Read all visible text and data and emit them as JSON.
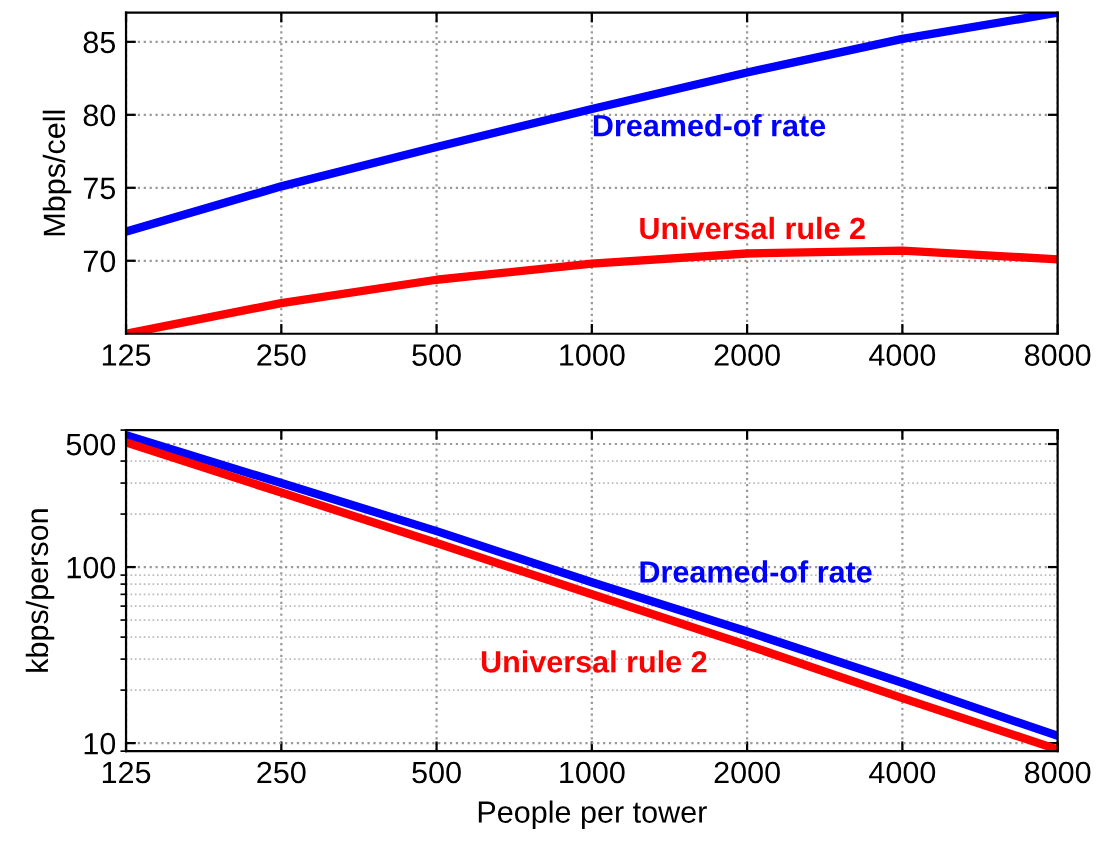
{
  "chart_data": [
    {
      "type": "line",
      "ylabel": "Mbps/cell",
      "x": [
        125,
        250,
        500,
        1000,
        2000,
        4000,
        8000
      ],
      "log": "x",
      "xlim": [
        125,
        8000
      ],
      "xticks": [
        125,
        250,
        500,
        1000,
        2000,
        4000,
        8000
      ],
      "ylim": [
        65,
        87
      ],
      "yticks": [
        70,
        75,
        80,
        85
      ],
      "grid": true,
      "legend": false,
      "marker": "none",
      "line_style": "solid",
      "series": [
        {
          "name": "Dreamed-of rate",
          "color": "#0000ff",
          "values": [
            72,
            75.1,
            77.8,
            80.4,
            82.9,
            85.2,
            87
          ]
        },
        {
          "name": "Universal rule 2",
          "color": "#ff0000",
          "values": [
            65,
            67.1,
            68.7,
            69.8,
            70.5,
            70.7,
            70.1
          ]
        }
      ]
    },
    {
      "type": "line",
      "xlabel": "People per tower",
      "ylabel": "kbps/person",
      "x": [
        125,
        250,
        500,
        1000,
        2000,
        4000,
        8000
      ],
      "log": "xy",
      "xlim": [
        125,
        8000
      ],
      "xticks": [
        125,
        250,
        500,
        1000,
        2000,
        4000,
        8000
      ],
      "ylim": [
        9,
        600
      ],
      "yticks": [
        10,
        100,
        500
      ],
      "grid": true,
      "legend": false,
      "marker": "none",
      "line_style": "solid",
      "series": [
        {
          "name": "Dreamed-of rate",
          "color": "#0000ff",
          "values": [
            560,
            300,
            160,
            82,
            43,
            22,
            11
          ]
        },
        {
          "name": "Universal rule 2",
          "color": "#ff0000",
          "values": [
            510,
            265,
            137,
            70,
            36,
            18,
            9.2
          ]
        }
      ]
    }
  ]
}
